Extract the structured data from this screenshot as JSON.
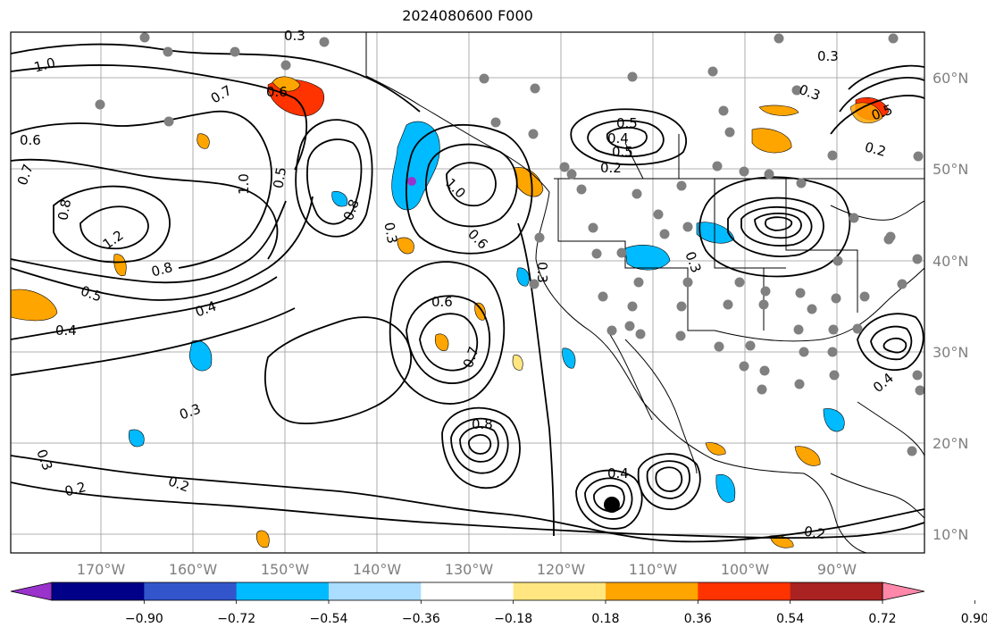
{
  "title": "2024080600 F000",
  "map": {
    "lon_labels": [
      "170°W",
      "160°W",
      "150°W",
      "140°W",
      "130°W",
      "120°W",
      "110°W",
      "100°W",
      "90°W"
    ],
    "lat_labels": [
      "60°N",
      "50°N",
      "40°N",
      "30°N",
      "20°N",
      "10°N"
    ],
    "contour_labels": [
      "1.0",
      "0.3",
      "0.6",
      "0.6",
      "0.7",
      "0.8",
      "1.2",
      "0.8",
      "0.5",
      "0.4",
      "0.4",
      "0.7",
      "1.0",
      "0.5",
      "0.8",
      "0.3",
      "1.0",
      "0.6",
      "0.5",
      "0.6",
      "0.7",
      "0.3",
      "0.2",
      "0.2",
      "0.3",
      "0.5",
      "0.4",
      "0.2",
      "0.3",
      "0.8",
      "0.3",
      "0.2",
      "0.4",
      "0.4",
      "0.2",
      "0.5",
      "0.3",
      "0.3"
    ],
    "colors": {
      "contour": "#000000",
      "land_outline": "#000000",
      "grid": "#999999",
      "stations": "#808080"
    }
  },
  "colorbar": {
    "ticks": [
      "−0.90",
      "−0.72",
      "−0.54",
      "−0.36",
      "−0.18",
      "0.18",
      "0.36",
      "0.54",
      "0.72",
      "0.90"
    ],
    "colors": [
      "#9933cc",
      "#000088",
      "#3355cc",
      "#00bbff",
      "#aaddff",
      "#ffffff",
      "#ffe680",
      "#ffa500",
      "#ff3300",
      "#aa2222",
      "#ff88aa"
    ]
  }
}
